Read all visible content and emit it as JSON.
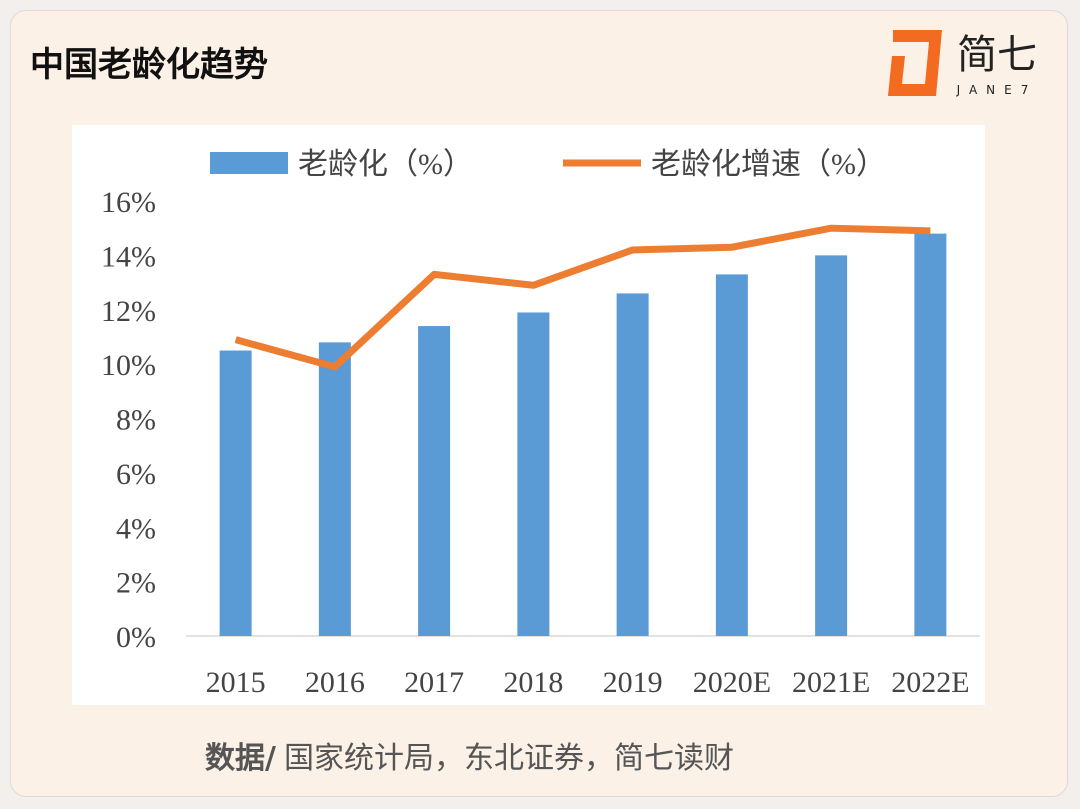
{
  "chart_data": {
    "type": "bar_line",
    "title": "中国老龄化趋势",
    "categories": [
      "2015",
      "2016",
      "2017",
      "2018",
      "2019",
      "2020E",
      "2021E",
      "2022E"
    ],
    "series": [
      {
        "name": "老龄化（%）",
        "type": "bar",
        "color": "#5b9bd5",
        "values": [
          10.5,
          10.8,
          11.4,
          11.9,
          12.6,
          13.3,
          14.0,
          14.8
        ]
      },
      {
        "name": "老龄化增速（%）",
        "type": "line",
        "color": "#ed7d31",
        "values": [
          10.9,
          9.9,
          13.3,
          12.9,
          14.2,
          14.3,
          15.0,
          14.9
        ]
      }
    ],
    "ylim": [
      0,
      16
    ],
    "yticks": [
      {
        "value": 0,
        "label": "0%"
      },
      {
        "value": 2,
        "label": "2%"
      },
      {
        "value": 4,
        "label": "4%"
      },
      {
        "value": 6,
        "label": "6%"
      },
      {
        "value": 8,
        "label": "8%"
      },
      {
        "value": 10,
        "label": "10%"
      },
      {
        "value": 12,
        "label": "12%"
      },
      {
        "value": 14,
        "label": "14%"
      },
      {
        "value": 16,
        "label": "16%"
      }
    ],
    "legend": "top"
  },
  "logo": {
    "name": "简七",
    "sub": "JANE7"
  },
  "footer": {
    "source_label": "数据/",
    "source": "国家统计局，东北证券，简七读财"
  }
}
